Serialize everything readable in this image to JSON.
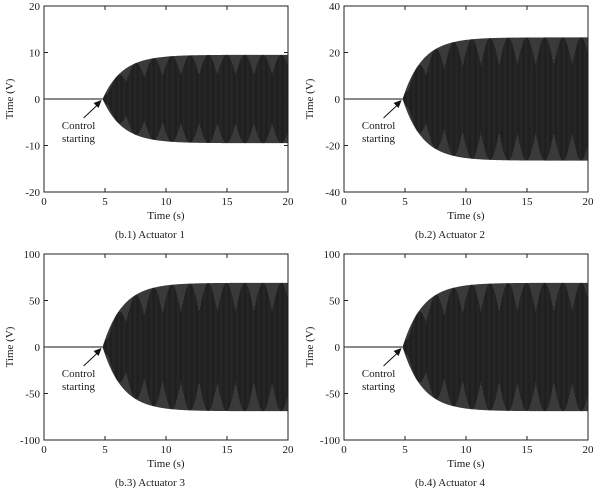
{
  "chart_data": [
    {
      "type": "line",
      "caption": "(b.1) Actuator 1",
      "xlabel": "Time (s)",
      "ylabel": "Time (V)",
      "xlim": [
        0,
        20
      ],
      "ylim": [
        -20,
        20
      ],
      "xticks": [
        0,
        5,
        10,
        15,
        20
      ],
      "yticks": [
        -20,
        -10,
        0,
        10,
        20
      ],
      "series": [
        {
          "control_start": 4.8,
          "envelope_amplitude": 9.5,
          "settle_time": 10,
          "color": "#3a3a3a"
        }
      ],
      "annotation": {
        "text_lines": [
          "Control",
          "starting"
        ],
        "x": 4.8,
        "y": 0
      }
    },
    {
      "type": "line",
      "caption": "(b.2) Actuator 2",
      "xlabel": "Time (s)",
      "ylabel": "Time (V)",
      "xlim": [
        0,
        20
      ],
      "ylim": [
        -40,
        40
      ],
      "xticks": [
        0,
        5,
        10,
        15,
        20
      ],
      "yticks": [
        -40,
        -20,
        0,
        20,
        40
      ],
      "series": [
        {
          "control_start": 4.8,
          "envelope_amplitude": 26.5,
          "settle_time": 10,
          "color": "#3a3a3a"
        }
      ],
      "annotation": {
        "text_lines": [
          "Control",
          "starting"
        ],
        "x": 4.8,
        "y": 0
      }
    },
    {
      "type": "line",
      "caption": "(b.3) Actuator 3",
      "xlabel": "Time (s)",
      "ylabel": "Time (V)",
      "xlim": [
        0,
        20
      ],
      "ylim": [
        -100,
        100
      ],
      "xticks": [
        0,
        5,
        10,
        15,
        20
      ],
      "yticks": [
        -100,
        -50,
        0,
        50,
        100
      ],
      "series": [
        {
          "control_start": 4.8,
          "envelope_amplitude": 69,
          "settle_time": 10,
          "color": "#3a3a3a"
        }
      ],
      "annotation": {
        "text_lines": [
          "Control",
          "starting"
        ],
        "x": 4.8,
        "y": 0
      }
    },
    {
      "type": "line",
      "caption": "(b.4) Actuator 4",
      "xlabel": "Time (s)",
      "ylabel": "Time (V)",
      "xlim": [
        0,
        20
      ],
      "ylim": [
        -100,
        100
      ],
      "xticks": [
        0,
        5,
        10,
        15,
        20
      ],
      "yticks": [
        -100,
        -50,
        0,
        50,
        100
      ],
      "series": [
        {
          "control_start": 4.8,
          "envelope_amplitude": 69,
          "settle_time": 10,
          "color": "#3a3a3a"
        }
      ],
      "annotation": {
        "text_lines": [
          "Control",
          "starting"
        ],
        "x": 4.8,
        "y": 0
      }
    }
  ]
}
